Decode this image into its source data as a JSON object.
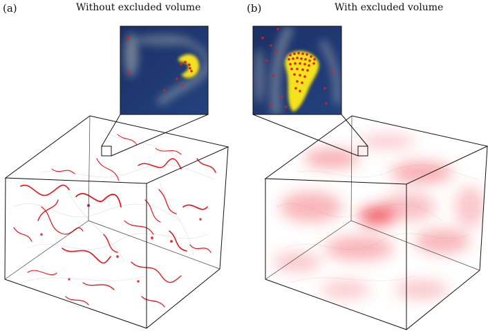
{
  "panels": [
    {
      "label": "(a)",
      "title": "Without excluded volume"
    },
    {
      "label": "(b)",
      "title": "With excluded volume"
    }
  ],
  "colors": {
    "filament": "#e8121a",
    "inset_background": "#1c3470",
    "inset_highlight": "#f4e21c",
    "inset_points": "#e31a1c",
    "frame": "#111111"
  },
  "icons": [
    "zoom-region-marker"
  ]
}
